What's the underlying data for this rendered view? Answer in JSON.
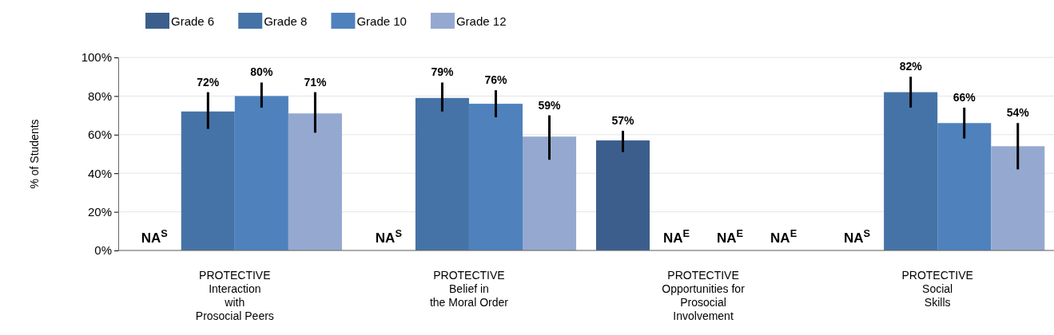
{
  "chart_data": {
    "type": "bar",
    "ylabel": "% of Students",
    "categories": [
      "PROTECTIVE\nInteraction\nwith\nProsocial Peers",
      "PROTECTIVE\nBelief in\nthe Moral Order",
      "PROTECTIVE\nOpportunities for\nProsocial\nInvolvement",
      "PROTECTIVE\nSocial\nSkills"
    ],
    "series": [
      {
        "name": "Grade 6",
        "color": "#3b5e8c",
        "values": [
          null,
          null,
          57,
          null
        ],
        "errors": [
          null,
          null,
          [
            51,
            62
          ],
          null
        ],
        "value_labels": [
          "NA$^{S}$",
          "NA$^{S}$",
          "57%",
          "NA$^{S}$"
        ]
      },
      {
        "name": "Grade 8",
        "color": "#4573a7",
        "values": [
          72,
          79,
          null,
          82
        ],
        "errors": [
          [
            63,
            82
          ],
          [
            72,
            87
          ],
          null,
          [
            74,
            90
          ]
        ],
        "value_labels": [
          "72%",
          "79%",
          "NA$^{E}$",
          "82%"
        ]
      },
      {
        "name": "Grade 10",
        "color": "#4f81bd",
        "values": [
          80,
          76,
          null,
          66
        ],
        "errors": [
          [
            74,
            87
          ],
          [
            69,
            83
          ],
          null,
          [
            58,
            74
          ]
        ],
        "value_labels": [
          "80%",
          "76%",
          "NA$^{E}$",
          "66%"
        ]
      },
      {
        "name": "Grade 12",
        "color": "#95a9d0",
        "values": [
          71,
          59,
          null,
          54
        ],
        "errors": [
          [
            61,
            82
          ],
          [
            47,
            70
          ],
          null,
          [
            42,
            66
          ]
        ],
        "value_labels": [
          "71%",
          "59%",
          "NA$^{E}$",
          "54%"
        ]
      }
    ],
    "ylim": [
      0,
      100
    ],
    "yticks": [
      {
        "value": 0,
        "label": "0%"
      },
      {
        "value": 20,
        "label": "20%"
      },
      {
        "value": 40,
        "label": "40%"
      },
      {
        "value": 60,
        "label": "60%"
      },
      {
        "value": 80,
        "label": "80%"
      },
      {
        "value": 100,
        "label": "100%"
      }
    ],
    "grid": "y",
    "legend": "top left"
  }
}
